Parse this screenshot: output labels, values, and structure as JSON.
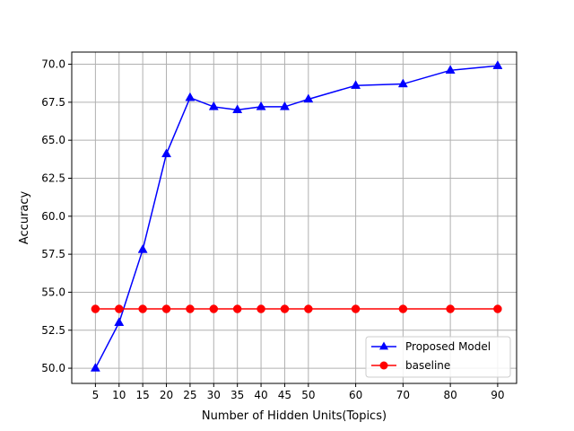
{
  "chart_data": {
    "type": "line",
    "xlabel": "Number of Hidden Units(Topics)",
    "ylabel": "Accuracy",
    "x": [
      5,
      10,
      15,
      20,
      25,
      30,
      35,
      40,
      45,
      50,
      60,
      70,
      80,
      90
    ],
    "xlim": [
      0,
      94
    ],
    "ylim": [
      49.0,
      70.8
    ],
    "xticks": [
      "5",
      "10",
      "15",
      "20",
      "25",
      "30",
      "35",
      "40",
      "45",
      "50",
      "60",
      "70",
      "80",
      "90"
    ],
    "yticks": [
      "50.0",
      "52.5",
      "55.0",
      "57.5",
      "60.0",
      "62.5",
      "65.0",
      "67.5",
      "70.0"
    ],
    "grid": true,
    "legend_position": "bottom-right",
    "series": [
      {
        "name": "Proposed Model",
        "color": "#0000ff",
        "marker": "triangle",
        "values": [
          50.0,
          53.0,
          57.8,
          64.1,
          67.8,
          67.2,
          67.0,
          67.2,
          67.2,
          67.7,
          68.6,
          68.7,
          69.6,
          69.9
        ]
      },
      {
        "name": "baseline",
        "color": "#ff0000",
        "marker": "circle",
        "values": [
          53.9,
          53.9,
          53.9,
          53.9,
          53.9,
          53.9,
          53.9,
          53.9,
          53.9,
          53.9,
          53.9,
          53.9,
          53.9,
          53.9
        ]
      }
    ]
  }
}
